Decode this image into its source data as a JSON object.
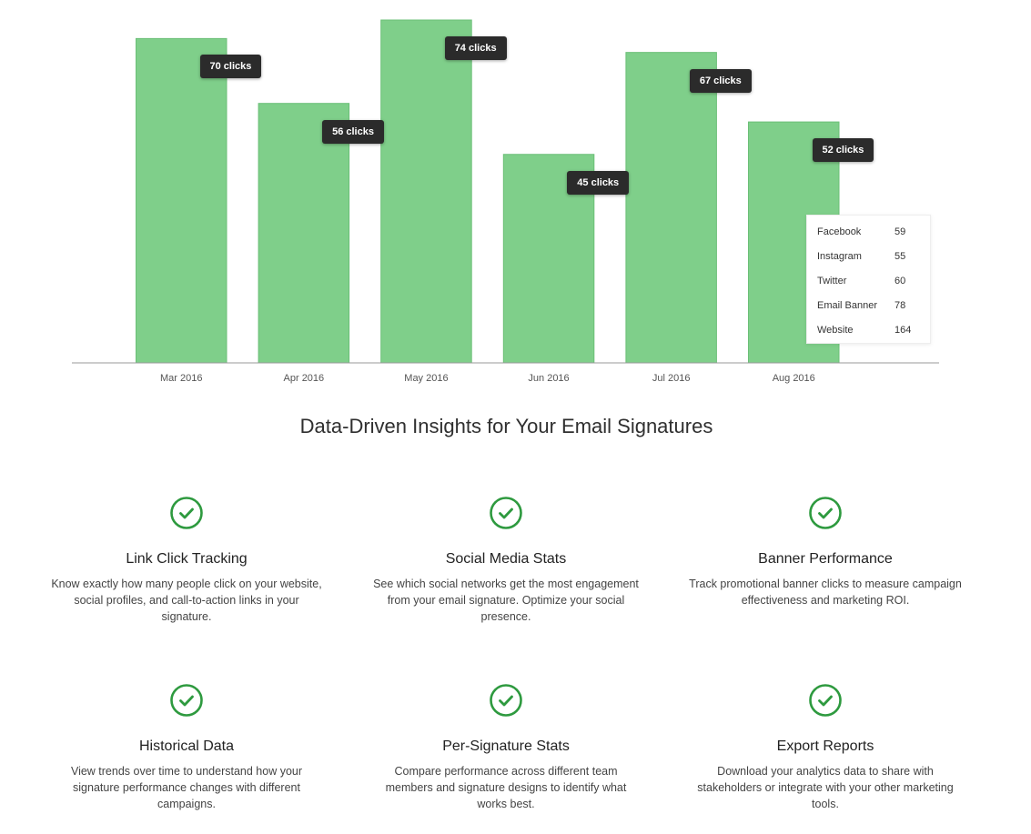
{
  "chart_data": {
    "type": "bar",
    "categories": [
      "Mar 2016",
      "Apr 2016",
      "May 2016",
      "Jun 2016",
      "Jul 2016",
      "Aug 2016"
    ],
    "values": [
      70,
      56,
      74,
      45,
      67,
      52
    ],
    "data_labels": [
      "70 clicks",
      "56 clicks",
      "74 clicks",
      "45 clicks",
      "67 clicks",
      "52 clicks"
    ],
    "ylim": [
      0,
      74
    ],
    "grid": false,
    "bar_color": "#7fcf8a",
    "bar_edge_color": "#6bbf77",
    "legend_position": "bottom-right",
    "legend": [
      {
        "name": "Facebook",
        "value": "59"
      },
      {
        "name": "Instagram",
        "value": "55"
      },
      {
        "name": "Twitter",
        "value": "60"
      },
      {
        "name": "Email Banner",
        "value": "78"
      },
      {
        "name": "Website",
        "value": "164"
      }
    ]
  },
  "section": {
    "title": "Data-Driven Insights for Your Email Signatures"
  },
  "accent_color": "#2e9a3f",
  "features": [
    {
      "icon": "check-circle-icon",
      "title": "Link Click Tracking",
      "desc": "Know exactly how many people click on your website, social profiles, and call-to-action links in your signature."
    },
    {
      "icon": "check-circle-icon",
      "title": "Social Media Stats",
      "desc": "See which social networks get the most engagement from your email signature. Optimize your social presence."
    },
    {
      "icon": "check-circle-icon",
      "title": "Banner Performance",
      "desc": "Track promotional banner clicks to measure campaign effectiveness and marketing ROI."
    },
    {
      "icon": "check-circle-icon",
      "title": "Historical Data",
      "desc": "View trends over time to understand how your signature performance changes with different campaigns."
    },
    {
      "icon": "check-circle-icon",
      "title": "Per-Signature Stats",
      "desc": "Compare performance across different team members and signature designs to identify what works best."
    },
    {
      "icon": "check-circle-icon",
      "title": "Export Reports",
      "desc": "Download your analytics data to share with stakeholders or integrate with your other marketing tools."
    }
  ]
}
